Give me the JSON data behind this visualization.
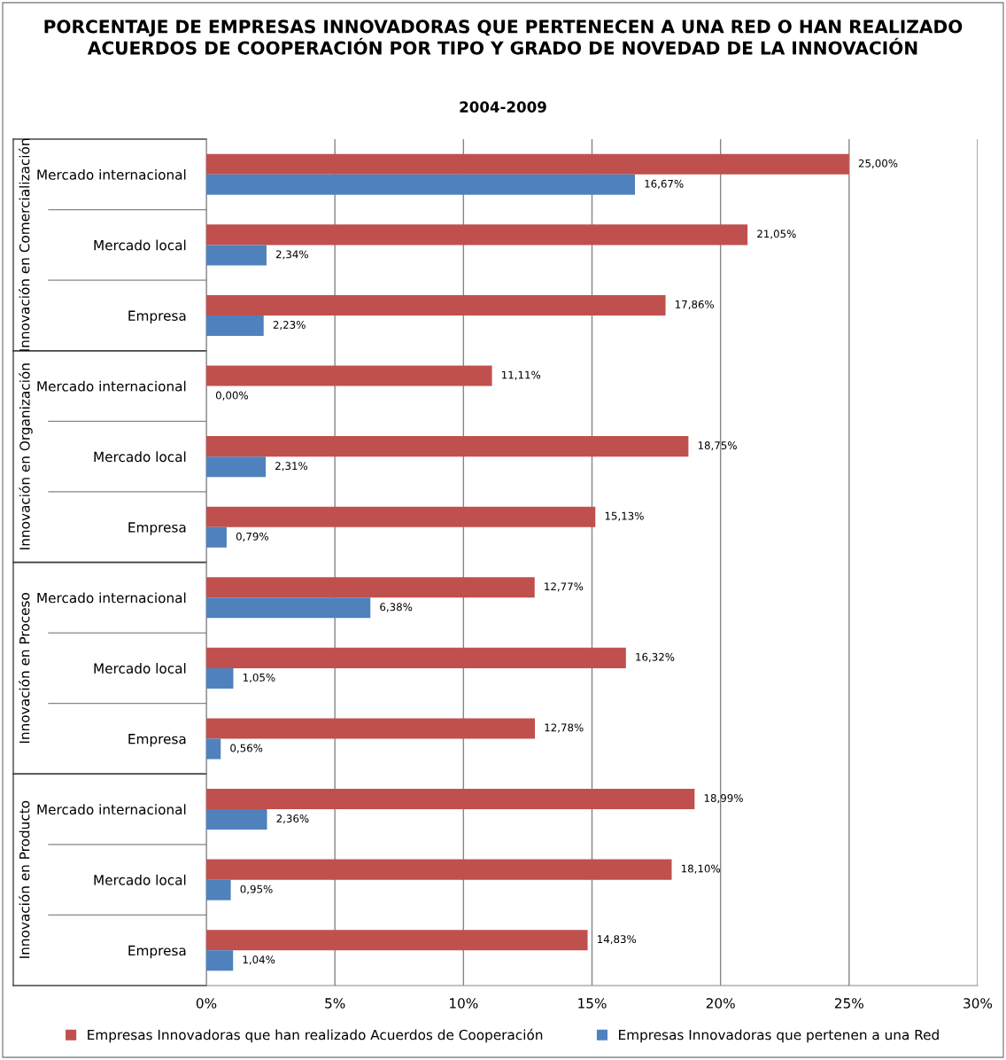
{
  "chart_data": {
    "type": "bar",
    "orientation": "horizontal",
    "title": "PORCENTAJE DE EMPRESAS INNOVADORAS QUE PERTENECEN A UNA RED O HAN REALIZADO ACUERDOS DE COOPERACIÓN POR TIPO Y GRADO DE NOVEDAD DE LA INNOVACIÓN",
    "subtitle": "2004-2009",
    "categories": [
      "Mercado internacional",
      "Mercado local",
      "Empresa",
      "Mercado internacional",
      "Mercado local",
      "Empresa",
      "Mercado internacional",
      "Mercado local",
      "Empresa",
      "Mercado internacional",
      "Mercado local",
      "Empresa"
    ],
    "annotations": [
      "Innovación en Comercialización",
      "Innovación en Organización",
      "Innovación en Proceso",
      "Innovación en Producto"
    ],
    "series": [
      {
        "name": "Empresas Innovadoras que han realizado Acuerdos de Cooperación",
        "color": "#c0504d",
        "values": [
          25.0,
          21.05,
          17.86,
          11.11,
          18.75,
          15.13,
          12.77,
          16.32,
          12.78,
          18.99,
          18.1,
          14.83
        ],
        "value_labels": [
          "25,00%",
          "21,05%",
          "17,86%",
          "11,11%",
          "18,75%",
          "15,13%",
          "12,77%",
          "16,32%",
          "12,78%",
          "18,99%",
          "18,10%",
          "14,83%"
        ]
      },
      {
        "name": "Empresas Innovadoras que pertenen a una Red",
        "color": "#4f81bd",
        "values": [
          16.67,
          2.34,
          2.23,
          0.0,
          2.31,
          0.79,
          6.38,
          1.05,
          0.56,
          2.36,
          0.95,
          1.04
        ],
        "value_labels": [
          "16,67%",
          "2,34%",
          "2,23%",
          "0,00%",
          "2,31%",
          "0,79%",
          "6,38%",
          "1,05%",
          "0,56%",
          "2,36%",
          "0,95%",
          "1,04%"
        ]
      }
    ],
    "xlim": [
      0,
      30
    ],
    "xticks": [
      {
        "value": 0,
        "label": "0%"
      },
      {
        "value": 5,
        "label": "5%"
      },
      {
        "value": 10,
        "label": "10%"
      },
      {
        "value": 15,
        "label": "15%"
      },
      {
        "value": 20,
        "label": "20%"
      },
      {
        "value": 25,
        "label": "25%"
      },
      {
        "value": 30,
        "label": "30%"
      }
    ],
    "grid": "x",
    "legend": "bottom"
  }
}
